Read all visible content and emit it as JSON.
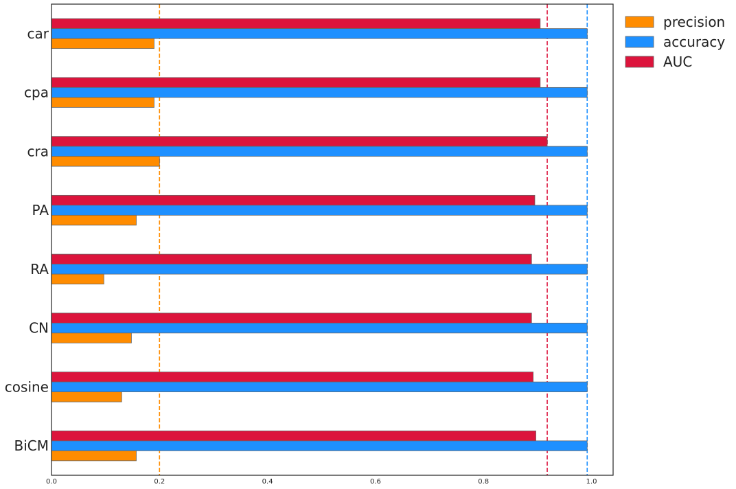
{
  "chart_data": {
    "type": "bar",
    "orientation": "horizontal",
    "categories": [
      "car",
      "cpa",
      "cra",
      "PA",
      "RA",
      "CN",
      "cosine",
      "BiCM"
    ],
    "series": [
      {
        "name": "precision",
        "color": "#ff8c00",
        "values": [
          0.19,
          0.19,
          0.2,
          0.157,
          0.097,
          0.148,
          0.13,
          0.157
        ]
      },
      {
        "name": "accuracy",
        "color": "#1e90ff",
        "values": [
          0.992,
          0.992,
          0.992,
          0.992,
          0.992,
          0.992,
          0.992,
          0.992
        ]
      },
      {
        "name": "AUC",
        "color": "#dc143c",
        "values": [
          0.905,
          0.905,
          0.918,
          0.895,
          0.889,
          0.889,
          0.892,
          0.897
        ]
      }
    ],
    "reference_lines": [
      {
        "value": 0.2,
        "color": "#ff8c00",
        "style": "dashed"
      },
      {
        "value": 0.918,
        "color": "#dc143c",
        "style": "dashed"
      },
      {
        "value": 0.992,
        "color": "#1e90ff",
        "style": "dashed"
      }
    ],
    "xlim": [
      0.0,
      1.04
    ],
    "xticks": [
      "0.0",
      "0.2",
      "0.4",
      "0.6",
      "0.8",
      "1.0"
    ],
    "xtick_values": [
      0.0,
      0.2,
      0.4,
      0.6,
      0.8,
      1.0
    ],
    "title": "",
    "xlabel": "",
    "ylabel": "",
    "grid": false,
    "legend_placement": "outside-top-right"
  }
}
